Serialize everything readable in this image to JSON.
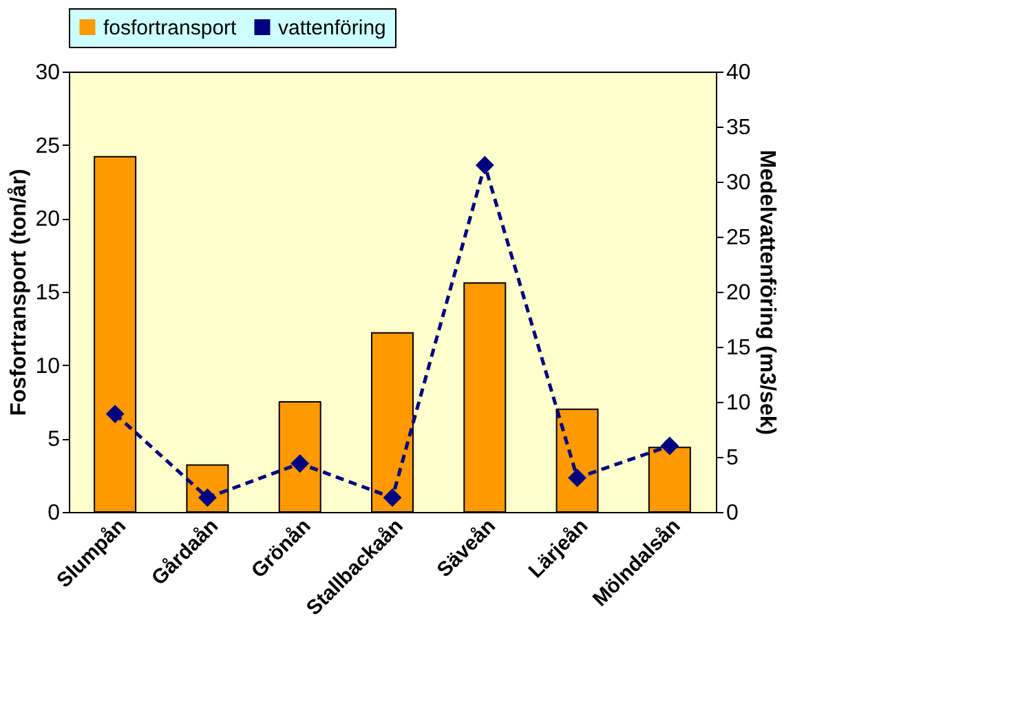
{
  "chart_data": {
    "type": "bar",
    "categories": [
      "Slumpån",
      "Gårdaån",
      "Grönån",
      "Stallbackaån",
      "Säveån",
      "Lärjeån",
      "Mölndalsån"
    ],
    "series": [
      {
        "name": "fosfortransport",
        "color": "#ff9900",
        "values": [
          24.2,
          3.2,
          7.5,
          12.2,
          15.6,
          7.0,
          4.4
        ]
      },
      {
        "name": "vattenföring",
        "type": "line",
        "axis": "y2",
        "color": "#000080",
        "marker": "diamond",
        "line_style": "dashed",
        "values": [
          8.9,
          1.3,
          4.4,
          1.3,
          31.5,
          3.1,
          6.0
        ]
      }
    ],
    "ylabel": "Fosfortransport (ton/år)",
    "y2label": "Medelvattenföring (m3/sek)",
    "ylim": [
      0,
      30
    ],
    "yticks": [
      0,
      5,
      10,
      15,
      20,
      25,
      30
    ],
    "y2lim": [
      0,
      40
    ],
    "y2ticks": [
      0,
      5,
      10,
      15,
      20,
      25,
      30,
      35,
      40
    ],
    "grid": false,
    "legend": "top"
  }
}
